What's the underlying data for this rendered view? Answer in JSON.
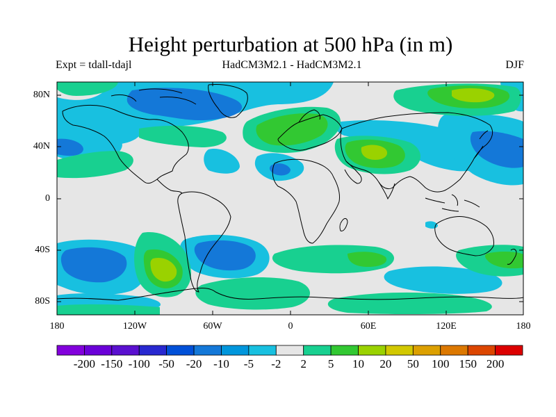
{
  "title": "Height perturbation at 500 hPa (in m)",
  "subtitle_left": "Expt = tdall-tdajl",
  "subtitle_center": "HadCM3M2.1 - HadCM3M2.1",
  "subtitle_right": "DJF",
  "lat_ticks": [
    "80N",
    "40N",
    "0",
    "40S",
    "80S"
  ],
  "lon_ticks": [
    "180",
    "120W",
    "60W",
    "0",
    "60E",
    "120E",
    "180"
  ],
  "colorbar": {
    "colors": [
      "#8200dc",
      "#6a00d8",
      "#5a10d0",
      "#2828d0",
      "#0050d8",
      "#1478d8",
      "#0096dc",
      "#18c0e0",
      "#e6e6e6",
      "#18d090",
      "#32c832",
      "#9ad200",
      "#d2c800",
      "#dca000",
      "#dc7800",
      "#dc4600",
      "#dc0000"
    ],
    "labels": [
      "-200",
      "-150",
      "-100",
      "-50",
      "-20",
      "-10",
      "-5",
      "-2",
      "2",
      "5",
      "10",
      "20",
      "50",
      "100",
      "150",
      "200"
    ]
  }
}
